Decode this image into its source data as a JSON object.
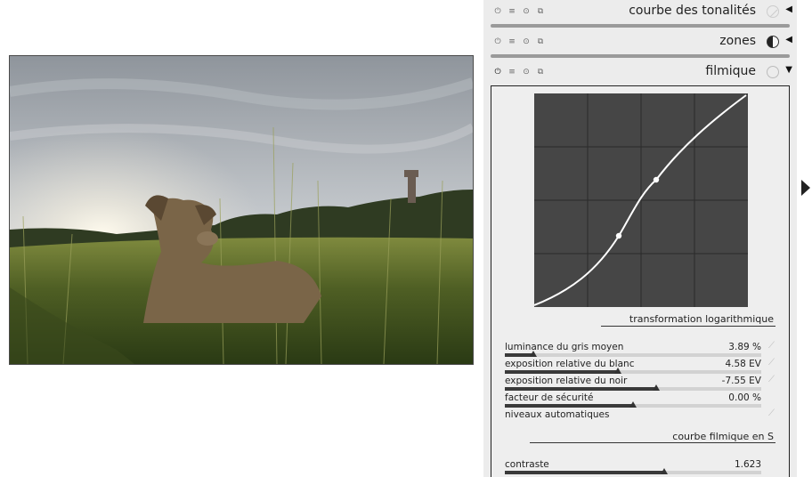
{
  "colors": {
    "panel_bg": "#ececec",
    "graph_bg": "#464646",
    "curve": "#ffffff",
    "accent": "#222222"
  },
  "modules": [
    {
      "title": "courbe des tonalités",
      "badge": "disabled-circle-icon",
      "arrow": "◀"
    },
    {
      "title": "zones",
      "badge": "half-circle-icon",
      "arrow": "◀"
    },
    {
      "title": "filmique",
      "badge": "empty-circle-icon",
      "arrow": "▼"
    }
  ],
  "header_icons": [
    "power-icon",
    "presets-icon",
    "reset-icon",
    "duplicate-icon"
  ],
  "filmic": {
    "section_log": "transformation logarithmique",
    "section_curve": "courbe filmique en S",
    "sliders": [
      {
        "label": "luminance du gris moyen",
        "value": "3.89 %",
        "fraction": 0.11
      },
      {
        "label": "exposition relative du blanc",
        "value": "4.58 EV",
        "fraction": 0.44
      },
      {
        "label": "exposition relative du noir",
        "value": "-7.55 EV",
        "fraction": 0.59
      },
      {
        "label": "facteur de sécurité",
        "value": "0.00 %",
        "fraction": 0.5
      }
    ],
    "auto_levels_label": "niveaux automatiques",
    "contrast": {
      "label": "contraste",
      "value": "1.623",
      "fraction": 0.62
    }
  }
}
